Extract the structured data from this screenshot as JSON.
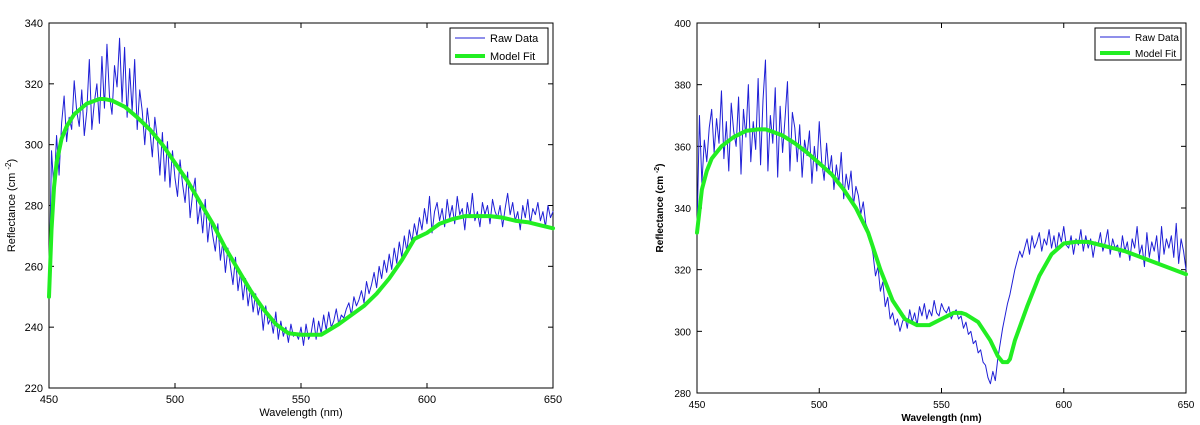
{
  "chart_data": [
    {
      "type": "line",
      "title": "",
      "xlabel": "Wavelength (nm)",
      "ylabel": "Reflectance (cm",
      "ylabel_sup": "-2",
      "ylabel_close": ")",
      "xlim": [
        450,
        650
      ],
      "ylim": [
        220,
        340
      ],
      "xticks": [
        450,
        500,
        550,
        600,
        650
      ],
      "yticks": [
        220,
        240,
        260,
        280,
        300,
        320,
        340
      ],
      "legend": {
        "placement": "top-right",
        "entries": [
          "Raw Data",
          "Model Fit"
        ]
      },
      "series": [
        {
          "name": "Raw Data",
          "color": "#1f1fd6",
          "x": [
            450,
            451,
            452,
            453,
            454,
            455,
            456,
            457,
            458,
            459,
            460,
            461,
            462,
            463,
            464,
            465,
            466,
            467,
            468,
            469,
            470,
            471,
            472,
            473,
            474,
            475,
            476,
            477,
            478,
            479,
            480,
            481,
            482,
            483,
            484,
            485,
            486,
            487,
            488,
            489,
            490,
            491,
            492,
            493,
            494,
            495,
            496,
            497,
            498,
            499,
            500,
            501,
            502,
            503,
            504,
            505,
            506,
            507,
            508,
            509,
            510,
            511,
            512,
            513,
            514,
            515,
            516,
            517,
            518,
            519,
            520,
            521,
            522,
            523,
            524,
            525,
            526,
            527,
            528,
            529,
            530,
            531,
            532,
            533,
            534,
            535,
            536,
            537,
            538,
            539,
            540,
            541,
            542,
            543,
            544,
            545,
            546,
            547,
            548,
            549,
            550,
            551,
            552,
            553,
            554,
            555,
            556,
            557,
            558,
            559,
            560,
            561,
            562,
            563,
            564,
            565,
            566,
            567,
            568,
            569,
            570,
            571,
            572,
            573,
            574,
            575,
            576,
            577,
            578,
            579,
            580,
            581,
            582,
            583,
            584,
            585,
            586,
            587,
            588,
            589,
            590,
            591,
            592,
            593,
            594,
            595,
            596,
            597,
            598,
            599,
            600,
            601,
            602,
            603,
            604,
            605,
            606,
            607,
            608,
            609,
            610,
            611,
            612,
            613,
            614,
            615,
            616,
            617,
            618,
            619,
            620,
            621,
            622,
            623,
            624,
            625,
            626,
            627,
            628,
            629,
            630,
            631,
            632,
            633,
            634,
            635,
            636,
            637,
            638,
            639,
            640,
            641,
            642,
            643,
            644,
            645,
            646,
            647,
            648,
            649,
            650
          ],
          "values": [
            250,
            298,
            285,
            303,
            290,
            307,
            316,
            301,
            309,
            305,
            321,
            311,
            306,
            318,
            303,
            311,
            328,
            305,
            314,
            320,
            307,
            329,
            312,
            333,
            316,
            310,
            326,
            319,
            335,
            314,
            332,
            309,
            325,
            311,
            328,
            305,
            318,
            311,
            300,
            312,
            305,
            296,
            309,
            302,
            290,
            304,
            288,
            301,
            286,
            298,
            289,
            283,
            295,
            287,
            281,
            291,
            276,
            284,
            289,
            274,
            280,
            271,
            282,
            268,
            276,
            270,
            265,
            274,
            262,
            268,
            258,
            266,
            260,
            254,
            263,
            252,
            258,
            249,
            256,
            247,
            253,
            245,
            251,
            244,
            248,
            239,
            247,
            241,
            243,
            238,
            245,
            236,
            242,
            237,
            240,
            235,
            241,
            237,
            238,
            236,
            240,
            234,
            241,
            236,
            238,
            243,
            236,
            242,
            238,
            244,
            239,
            245,
            240,
            242,
            246,
            241,
            244,
            243,
            246,
            248,
            244,
            250,
            247,
            249,
            252,
            248,
            255,
            251,
            254,
            258,
            253,
            260,
            256,
            262,
            258,
            264,
            259,
            266,
            261,
            268,
            263,
            270,
            265,
            272,
            268,
            274,
            270,
            276,
            272,
            279,
            274,
            283,
            271,
            278,
            281,
            275,
            279,
            273,
            282,
            276,
            280,
            274,
            283,
            277,
            279,
            272,
            281,
            276,
            284,
            275,
            278,
            273,
            281,
            277,
            280,
            274,
            282,
            278,
            276,
            280,
            273,
            279,
            284,
            277,
            281,
            275,
            278,
            272,
            280,
            276,
            282,
            274,
            279,
            277,
            281,
            275,
            278,
            273,
            280,
            276,
            278
          ]
        },
        {
          "name": "Model Fit",
          "color": "#22ee22",
          "x": [
            450,
            451,
            452,
            453,
            454,
            455,
            457,
            460,
            465,
            470,
            472,
            475,
            480,
            485,
            490,
            495,
            500,
            505,
            510,
            515,
            520,
            525,
            530,
            535,
            540,
            545,
            550,
            555,
            558,
            560,
            565,
            570,
            575,
            580,
            585,
            590,
            595,
            600,
            605,
            610,
            615,
            620,
            625,
            630,
            635,
            640,
            645,
            650
          ],
          "values": [
            250,
            272,
            286,
            294,
            298,
            302,
            306,
            310,
            313.5,
            315,
            315,
            314.5,
            312.5,
            309,
            305,
            300,
            294,
            288,
            281,
            274,
            266,
            259,
            252,
            246,
            241,
            238,
            237.5,
            237.5,
            237.5,
            238.5,
            241,
            244,
            247,
            251,
            256,
            262,
            269,
            271,
            274,
            275.5,
            276.5,
            276.5,
            276.5,
            276,
            275,
            274.5,
            273.5,
            272.5
          ]
        }
      ]
    },
    {
      "type": "line",
      "title": "",
      "xlabel": "Wavelength (nm)",
      "ylabel": "Reflectance (cm",
      "ylabel_sup": "-2",
      "ylabel_close": ")",
      "xlim": [
        450,
        650
      ],
      "ylim": [
        280,
        400
      ],
      "xticks": [
        450,
        500,
        550,
        600,
        650
      ],
      "yticks": [
        280,
        300,
        320,
        340,
        360,
        380,
        400
      ],
      "legend": {
        "placement": "top-right",
        "entries": [
          "Raw Data",
          "Model Fit"
        ]
      },
      "series": [
        {
          "name": "Raw Data",
          "color": "#1f1fd6",
          "x": [
            450,
            451,
            452,
            453,
            454,
            455,
            456,
            457,
            458,
            459,
            460,
            461,
            462,
            463,
            464,
            465,
            466,
            467,
            468,
            469,
            470,
            471,
            472,
            473,
            474,
            475,
            476,
            477,
            478,
            479,
            480,
            481,
            482,
            483,
            484,
            485,
            486,
            487,
            488,
            489,
            490,
            491,
            492,
            493,
            494,
            495,
            496,
            497,
            498,
            499,
            500,
            501,
            502,
            503,
            504,
            505,
            506,
            507,
            508,
            509,
            510,
            511,
            512,
            513,
            514,
            515,
            516,
            517,
            518,
            519,
            520,
            521,
            522,
            523,
            524,
            525,
            526,
            527,
            528,
            529,
            530,
            531,
            532,
            533,
            534,
            535,
            536,
            537,
            538,
            539,
            540,
            541,
            542,
            543,
            544,
            545,
            546,
            547,
            548,
            549,
            550,
            551,
            552,
            553,
            554,
            555,
            556,
            557,
            558,
            559,
            560,
            561,
            562,
            563,
            564,
            565,
            566,
            567,
            568,
            569,
            570,
            571,
            572,
            573,
            574,
            575,
            576,
            577,
            578,
            579,
            580,
            581,
            582,
            583,
            584,
            585,
            586,
            587,
            588,
            589,
            590,
            591,
            592,
            593,
            594,
            595,
            596,
            597,
            598,
            599,
            600,
            601,
            602,
            603,
            604,
            605,
            606,
            607,
            608,
            609,
            610,
            611,
            612,
            613,
            614,
            615,
            616,
            617,
            618,
            619,
            620,
            621,
            622,
            623,
            624,
            625,
            626,
            627,
            628,
            629,
            630,
            631,
            632,
            633,
            634,
            635,
            636,
            637,
            638,
            639,
            640,
            641,
            642,
            643,
            644,
            645,
            646,
            647,
            648,
            649,
            650
          ],
          "values": [
            332,
            370,
            348,
            362,
            355,
            366,
            372,
            358,
            369,
            361,
            378,
            356,
            368,
            352,
            374,
            365,
            360,
            376,
            351,
            372,
            363,
            380,
            355,
            368,
            359,
            382,
            354,
            375,
            388,
            352,
            370,
            361,
            379,
            350,
            373,
            358,
            369,
            381,
            352,
            371,
            366,
            355,
            367,
            350,
            362,
            357,
            365,
            348,
            360,
            352,
            368,
            355,
            349,
            361,
            351,
            357,
            346,
            354,
            348,
            358,
            343,
            351,
            346,
            352,
            341,
            347,
            344,
            338,
            342,
            335,
            333,
            329,
            325,
            318,
            321,
            313,
            316,
            308,
            311,
            304,
            306,
            302,
            304,
            300,
            303,
            305,
            301,
            307,
            303,
            306,
            302,
            308,
            305,
            309,
            304,
            307,
            305,
            310,
            306,
            305,
            309,
            307,
            306,
            308,
            304,
            306,
            307,
            304,
            305,
            301,
            303,
            299,
            300,
            296,
            297,
            293,
            294,
            290,
            289,
            285,
            283,
            287,
            284,
            291,
            296,
            301,
            305,
            309,
            312,
            316,
            320,
            323,
            326,
            324,
            327,
            330,
            325,
            331,
            327,
            329,
            332,
            326,
            330,
            328,
            333,
            327,
            331,
            326,
            332,
            329,
            334,
            328,
            327,
            331,
            325,
            330,
            328,
            333,
            326,
            331,
            327,
            330,
            324,
            329,
            328,
            332,
            326,
            329,
            333,
            325,
            330,
            327,
            328,
            324,
            331,
            326,
            329,
            323,
            330,
            327,
            334,
            325,
            328,
            321,
            332,
            324,
            329,
            326,
            331,
            322,
            334,
            325,
            330,
            327,
            331,
            324,
            335,
            322,
            330,
            326,
            320
          ]
        },
        {
          "name": "Model Fit",
          "color": "#22ee22",
          "x": [
            450,
            452,
            454,
            456,
            458,
            460,
            465,
            470,
            475,
            478,
            480,
            485,
            490,
            495,
            500,
            505,
            510,
            515,
            520,
            525,
            530,
            535,
            540,
            545,
            550,
            555,
            558,
            560,
            565,
            570,
            573,
            575,
            577,
            578,
            580,
            585,
            590,
            595,
            600,
            605,
            610,
            615,
            620,
            625,
            630,
            635,
            640,
            645,
            650
          ],
          "values": [
            332,
            346,
            352,
            356,
            358,
            360,
            363,
            365,
            365.5,
            365.5,
            365,
            363.5,
            361,
            358,
            354.5,
            351,
            346,
            340,
            332,
            320,
            310,
            304,
            302,
            302,
            304,
            306,
            306,
            305.5,
            303,
            297,
            292,
            290,
            290,
            291,
            297,
            308,
            318,
            325,
            328.5,
            329,
            329,
            328,
            327,
            326,
            324.5,
            323,
            321.5,
            320,
            318.5
          ]
        }
      ]
    }
  ]
}
